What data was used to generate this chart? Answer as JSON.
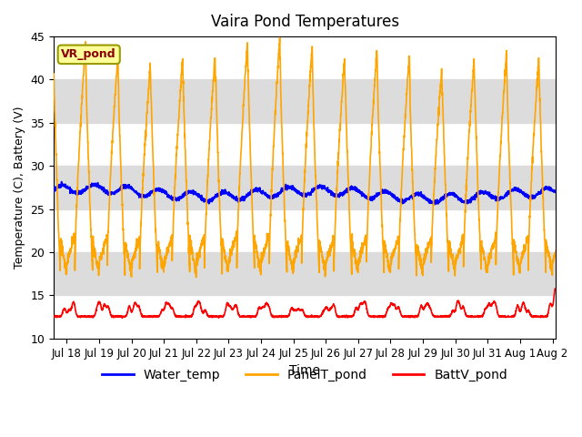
{
  "title": "Vaira Pond Temperatures",
  "xlabel": "Time",
  "ylabel": "Temperature (C), Battery (V)",
  "ylim": [
    10,
    45
  ],
  "yticks": [
    10,
    15,
    20,
    25,
    30,
    35,
    40,
    45
  ],
  "annotation_text": "VR_pond",
  "annotation_color": "#8B0000",
  "annotation_bg": "#FFFF99",
  "annotation_edge": "#999900",
  "line_water_color": "#0000FF",
  "line_panel_color": "#FFA500",
  "line_batt_color": "#FF0000",
  "legend_labels": [
    "Water_temp",
    "PanelT_pond",
    "BattV_pond"
  ],
  "bg_band_color": "#DCDCDC",
  "xstart": 17.6,
  "xend": 33.1,
  "xtick_positions": [
    18,
    19,
    20,
    21,
    22,
    23,
    24,
    25,
    26,
    27,
    28,
    29,
    30,
    31,
    32,
    33
  ],
  "xtick_labels": [
    "Jul 18",
    "Jul 19",
    "Jul 20",
    "Jul 21",
    "Jul 22",
    "Jul 23",
    "Jul 24",
    "Jul 25",
    "Jul 26",
    "Jul 27",
    "Jul 28",
    "Jul 29",
    "Jul 30",
    "Jul 31",
    "Aug 1",
    "Aug 2"
  ]
}
